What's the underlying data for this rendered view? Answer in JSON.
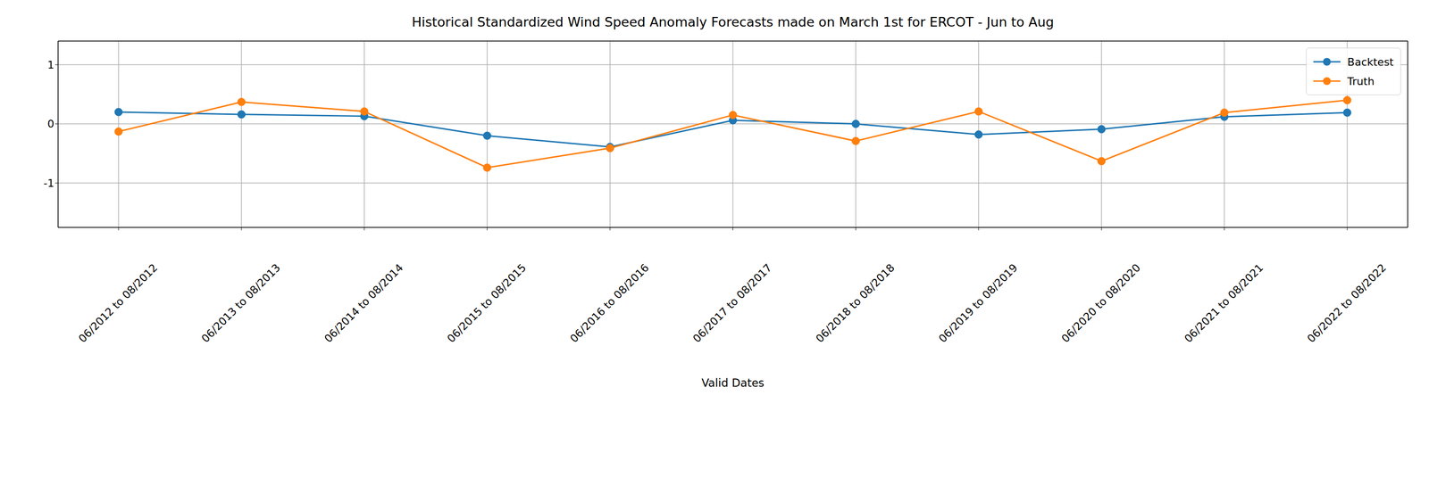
{
  "chart_data": {
    "type": "line",
    "title": "Historical Standardized Wind Speed Anomaly Forecasts made on March 1st for ERCOT - Jun to Aug",
    "x_label": "Valid Dates",
    "categories": [
      "06/2012 to 08/2012",
      "06/2013 to 08/2013",
      "06/2014 to 08/2014",
      "06/2015 to 08/2015",
      "06/2016 to 08/2016",
      "06/2017 to 08/2017",
      "06/2018 to 08/2018",
      "06/2019 to 08/2019",
      "06/2020 to 08/2020",
      "06/2021 to 08/2021",
      "06/2022 to 08/2022"
    ],
    "series": [
      {
        "name": "Backtest",
        "color": "#1f77b4",
        "marker": "o",
        "values": [
          0.2,
          0.16,
          0.13,
          -0.2,
          -0.39,
          0.06,
          0.0,
          -0.18,
          -0.09,
          0.12,
          0.19
        ]
      },
      {
        "name": "Truth",
        "color": "#ff7f0e",
        "marker": "o",
        "values": [
          -0.13,
          0.37,
          0.21,
          -0.74,
          -0.41,
          0.15,
          -0.29,
          0.21,
          -0.63,
          0.19,
          0.4
        ]
      }
    ],
    "ylim": [
      -1.75,
      1.4
    ],
    "yticks": [
      -1,
      0,
      1
    ],
    "grid": true,
    "legend": "upper right"
  }
}
